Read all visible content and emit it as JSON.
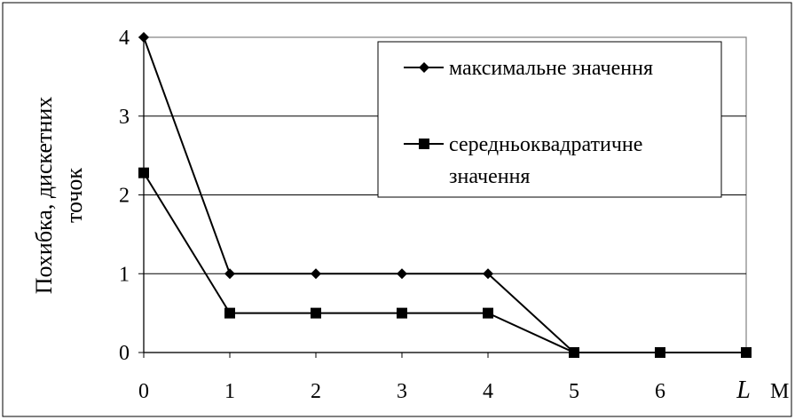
{
  "chart_data": {
    "type": "line",
    "title": "",
    "x": [
      0,
      1,
      2,
      3,
      4,
      5,
      6,
      7
    ],
    "xticks": [
      "0",
      "1",
      "2",
      "3",
      "4",
      "5",
      "6"
    ],
    "xvar_label": "L",
    "xunit_fragment": "M",
    "ylabel_line1": "Похибка, дискетних",
    "ylabel_line2": "точок",
    "ylim": [
      0,
      4
    ],
    "yticks": [
      "0",
      "1",
      "2",
      "3",
      "4"
    ],
    "grid": true,
    "legend_position": "top-right",
    "series": [
      {
        "name_lines": [
          "максимальне значення"
        ],
        "marker": "diamond",
        "values": [
          4,
          1,
          1,
          1,
          1,
          0,
          0,
          0
        ]
      },
      {
        "name_lines": [
          "середньоквадратичне",
          "значення"
        ],
        "marker": "square",
        "values": [
          2.28,
          0.5,
          0.5,
          0.5,
          0.5,
          0,
          0,
          0
        ]
      }
    ]
  }
}
